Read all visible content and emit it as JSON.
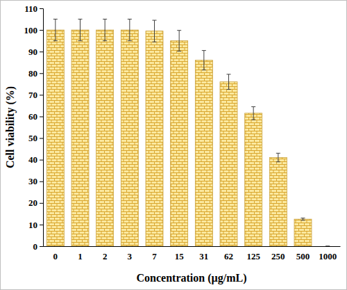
{
  "chart_data": {
    "type": "bar",
    "x_label": "Concentration (µg/mL)",
    "y_label": "Cell viability (%)",
    "categories": [
      "0",
      "1",
      "2",
      "3",
      "7",
      "15",
      "31",
      "62",
      "125",
      "250",
      "500",
      "1000"
    ],
    "values": [
      100,
      100,
      100,
      100,
      99.5,
      95,
      86,
      76,
      61.5,
      41,
      12.5,
      0
    ],
    "errors": [
      5,
      5,
      5,
      5,
      5,
      4.8,
      4.5,
      3.5,
      3,
      2,
      0.5,
      0
    ],
    "color": "#fbe9a0",
    "ylim": [
      0,
      110
    ],
    "yticks": [
      0,
      10,
      20,
      30,
      40,
      50,
      60,
      70,
      80,
      90,
      100,
      110
    ],
    "grid": false
  }
}
